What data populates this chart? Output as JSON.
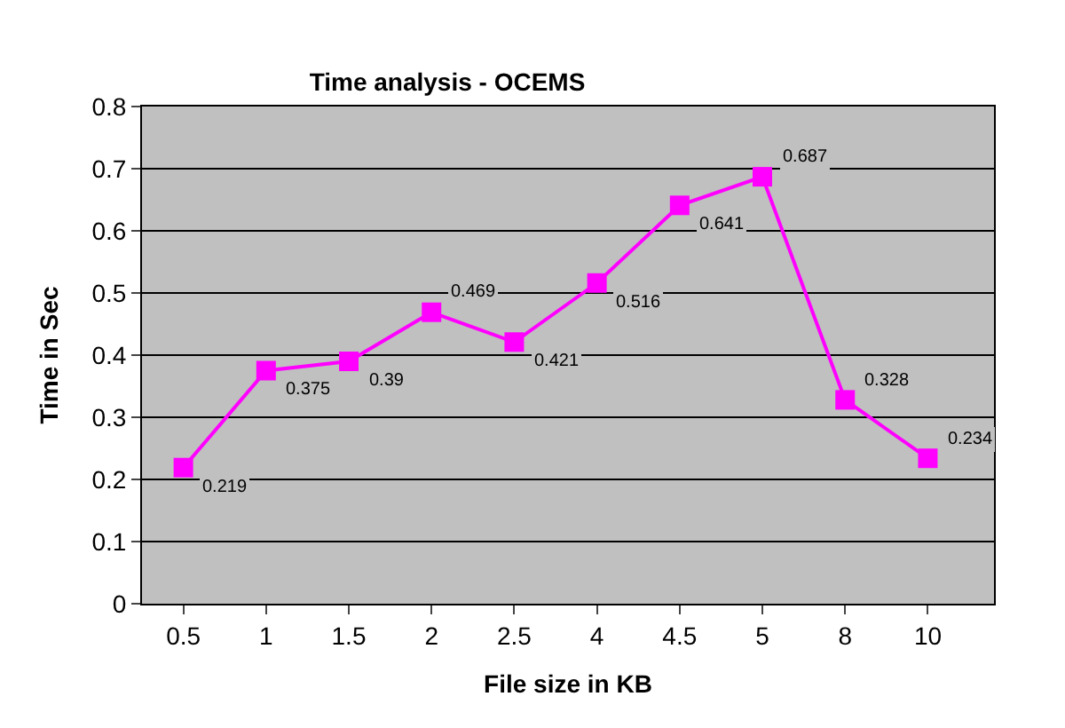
{
  "chart_data": {
    "type": "line",
    "title": "Time analysis - OCEMS",
    "xlabel": "File size in KB",
    "ylabel": "Time in Sec",
    "categories": [
      "0.5",
      "1",
      "1.5",
      "2",
      "2.5",
      "4",
      "4.5",
      "5",
      "8",
      "10"
    ],
    "series": [
      {
        "color": "#ff00ff",
        "values": [
          0.219,
          0.375,
          0.39,
          0.469,
          0.421,
          0.516,
          0.641,
          0.687,
          0.328,
          0.234
        ]
      }
    ],
    "ylim": [
      0,
      0.8
    ],
    "yticks": [
      0,
      0.1,
      0.2,
      0.3,
      0.4,
      0.5,
      0.6,
      0.7,
      0.8
    ],
    "grid": "y",
    "marker": "square",
    "line_style": "solid",
    "data_labels": true
  }
}
